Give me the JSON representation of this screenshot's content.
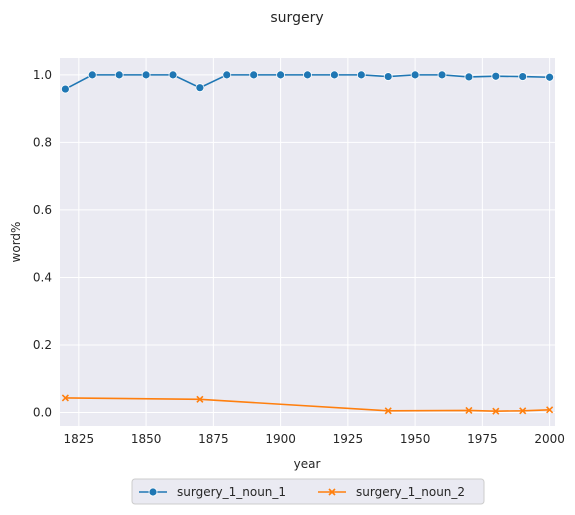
{
  "chart_data": {
    "type": "line",
    "title": "surgery",
    "xlabel": "year",
    "ylabel": "word%",
    "xlim": [
      1818,
      2002
    ],
    "ylim": [
      -0.04,
      1.05
    ],
    "xticks": [
      1825,
      1850,
      1875,
      1900,
      1925,
      1950,
      1975,
      2000
    ],
    "yticks": [
      0.0,
      0.2,
      0.4,
      0.6,
      0.8,
      1.0
    ],
    "grid": true,
    "legend_position": "bottom-center",
    "background": "#eaeaf2",
    "series": [
      {
        "name": "surgery_1_noun_1",
        "color": "#1f77b4",
        "marker": "circle",
        "x": [
          1820,
          1830,
          1840,
          1850,
          1860,
          1870,
          1880,
          1890,
          1900,
          1910,
          1920,
          1930,
          1940,
          1950,
          1960,
          1970,
          1980,
          1990,
          2000
        ],
        "y": [
          0.958,
          1.0,
          1.0,
          1.0,
          1.0,
          0.962,
          1.0,
          1.0,
          1.0,
          1.0,
          1.0,
          1.0,
          0.995,
          1.0,
          1.0,
          0.994,
          0.996,
          0.995,
          0.993
        ]
      },
      {
        "name": "surgery_1_noun_2",
        "color": "#ff7f0e",
        "marker": "x",
        "x": [
          1820,
          1870,
          1940,
          1970,
          1980,
          1990,
          2000
        ],
        "y": [
          0.043,
          0.039,
          0.005,
          0.006,
          0.004,
          0.005,
          0.008
        ]
      }
    ]
  }
}
